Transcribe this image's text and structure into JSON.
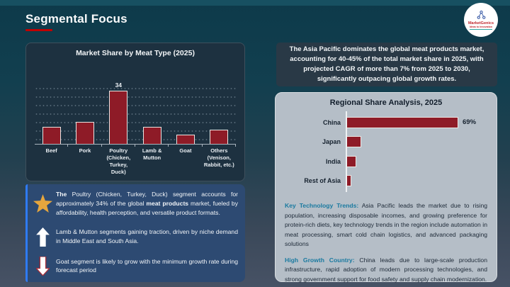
{
  "header": {
    "title": "Segmental Focus"
  },
  "logo": {
    "brand": "MarketGenics",
    "tagline": "Ideas to Innovation"
  },
  "meat_chart": {
    "title": "Market Share by Meat Type (2025)"
  },
  "statement": {
    "text": "The Asia Pacific dominates the global meat products market, accounting for 40-45% of the total market share in 2025, with projected CAGR of more than 7% from 2025 to 2030, significantly outpacing global growth rates."
  },
  "regional": {
    "title": "Regional Share Analysis, 2025",
    "tech_heading": "Key Technology Trends:",
    "tech_body": " Asia Pacific leads the market due to rising population, increasing disposable incomes, and growing preference for protein-rich diets, key technology trends in the region include automation in meat processing, smart cold chain logistics, and advanced packaging solutions",
    "growth_heading": "High Growth Country:",
    "growth_body": " China leads due to large-scale production infrastructure, rapid adoption of modern processing technologies, and strong government support for food safety and supply chain modernization."
  },
  "insights": {
    "items": [
      {
        "icon": "star",
        "p1": "The ",
        "p2": "Poultry (Chicken, Turkey, Duck) segment accounts for approximately 34% of the global ",
        "p3": "meat products",
        "p4": " market, fueled by affordability, health perception, and versatile product formats."
      },
      {
        "icon": "up-arrow",
        "p1": "",
        "p2": "Lamb & Mutton segments gaining traction, driven by niche demand in Middle East and South Asia.",
        "p3": "",
        "p4": ""
      },
      {
        "icon": "down-arrow",
        "p1": "",
        "p2": "Goat segment is likely to grow with the minimum growth rate during forecast period",
        "p3": "",
        "p4": ""
      }
    ]
  },
  "colors": {
    "bar_red": "#8E1B27",
    "title_underline_red": "#C00000",
    "teal_heading": "#1A7AA0",
    "insights_blue": "#2D4A72",
    "accent_blue": "#2F7BF3",
    "star_gold": "#E6A63D",
    "panel_gray": "#B5BEC7",
    "dark_box": "#293946"
  },
  "chart_data": [
    {
      "type": "bar",
      "orientation": "vertical",
      "title": "Market Share by Meat Type (2025)",
      "categories": [
        "Beef",
        "Pork",
        "Poultry (Chicken, Turkey, Duck)",
        "Lamb & Mutton",
        "Goat",
        "Others (Venison, Rabbit, etc.)"
      ],
      "tick_labels": [
        "Beef",
        "Pork",
        "Poultry\n(Chicken,\nTurkey, Duck)",
        "Lamb &\nMutton",
        "Goat",
        "Others\n(Venison,\nRabbit, etc.)"
      ],
      "values": [
        11,
        14,
        34,
        11,
        6,
        9
      ],
      "data_labels": [
        "",
        "",
        "34",
        "",
        "",
        ""
      ],
      "xlabel": "",
      "ylabel": "",
      "ylim": [
        0,
        40
      ],
      "grid": true,
      "legend": false
    },
    {
      "type": "bar",
      "orientation": "horizontal",
      "title": "Regional Share Analysis, 2025",
      "categories": [
        "China",
        "Japan",
        "India",
        "Rest of Asia"
      ],
      "values": [
        69,
        9,
        6,
        3
      ],
      "data_labels": [
        "69%",
        "",
        "",
        ""
      ],
      "xlabel": "",
      "ylabel": "",
      "xlim": [
        0,
        75
      ],
      "grid": false,
      "legend": false
    }
  ]
}
